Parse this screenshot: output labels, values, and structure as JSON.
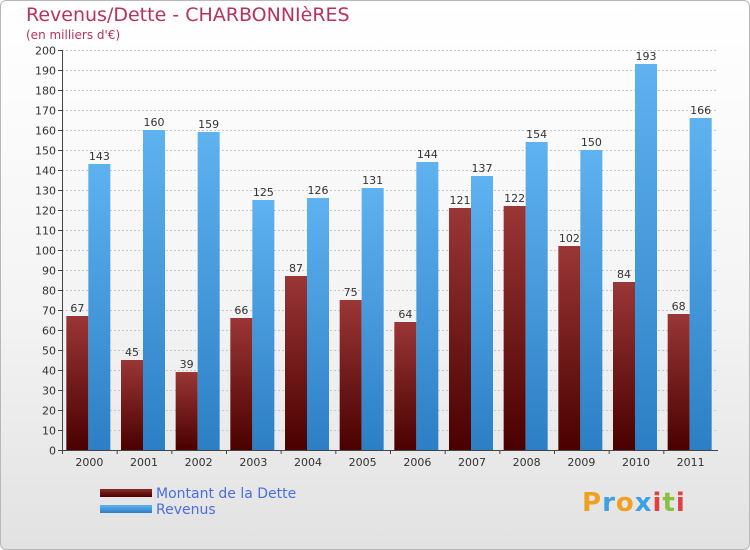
{
  "header": {
    "title": "Revenus/Dette - CHARBONNIèRES",
    "subtitle": "(en milliers d'€)"
  },
  "legend": {
    "items": [
      {
        "label": "Montant de la Dette",
        "color": "#7a1a1a"
      },
      {
        "label": "Revenus",
        "color": "#4aa3e8"
      }
    ]
  },
  "logo": {
    "letters": [
      "P",
      "r",
      "o",
      "x",
      "i",
      "t",
      "i"
    ],
    "colors": [
      "#f0a020",
      "#3fa0e0",
      "#f0a020",
      "#3fa0e0",
      "#e04040",
      "#8ac040",
      "#e04040"
    ]
  },
  "chart_data": {
    "type": "bar",
    "title": "Revenus/Dette - CHARBONNIèRES",
    "ylabel": "(en milliers d'€)",
    "xlabel": "",
    "ylim": [
      0,
      200
    ],
    "ytick_step": 10,
    "grid": true,
    "categories": [
      "2000",
      "2001",
      "2002",
      "2003",
      "2004",
      "2005",
      "2006",
      "2007",
      "2008",
      "2009",
      "2010",
      "2011"
    ],
    "series": [
      {
        "name": "Montant de la Dette",
        "color": "#7a1a1a",
        "values": [
          67,
          45,
          39,
          66,
          87,
          75,
          64,
          121,
          122,
          102,
          84,
          68
        ]
      },
      {
        "name": "Revenus",
        "color": "#4aa3e8",
        "values": [
          143,
          160,
          159,
          125,
          126,
          131,
          144,
          137,
          154,
          150,
          193,
          166
        ]
      }
    ]
  }
}
